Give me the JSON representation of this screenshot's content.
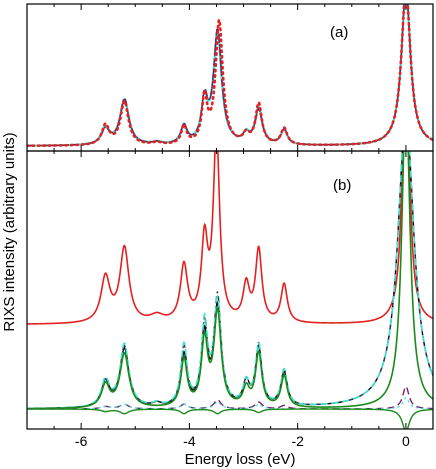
{
  "chart_data": {
    "type": "line",
    "ylabel": "RIXS intensity (arbitrary units)",
    "xlabel": "Energy loss (eV)",
    "xlim": [
      -7.0,
      0.5
    ],
    "x_ticks": [
      -6,
      -4,
      -2,
      0
    ],
    "x_tick_labels": [
      "-6",
      "-4",
      "-2",
      "0"
    ],
    "peaks_eV": [
      -5.55,
      -5.2,
      -4.6,
      -4.1,
      -3.7,
      -3.45,
      -2.95,
      -2.7,
      -2.25,
      0.0
    ],
    "panels": [
      {
        "label": "(a)",
        "ylim": [
          0,
          1.0
        ],
        "series": [
          {
            "style": "solid",
            "color": "#40e0d0",
            "width": 2.2,
            "peaks": [
              {
                "x": -5.55,
                "h": 0.11,
                "w": 0.09
              },
              {
                "x": -5.2,
                "h": 0.3,
                "w": 0.1
              },
              {
                "x": -4.6,
                "h": 0.015,
                "w": 0.1
              },
              {
                "x": -4.1,
                "h": 0.12,
                "w": 0.07
              },
              {
                "x": -3.72,
                "h": 0.27,
                "w": 0.07
              },
              {
                "x": -3.48,
                "h": 0.74,
                "w": 0.09
              },
              {
                "x": -2.95,
                "h": 0.06,
                "w": 0.07
              },
              {
                "x": -2.72,
                "h": 0.24,
                "w": 0.08
              },
              {
                "x": -2.25,
                "h": 0.1,
                "w": 0.07
              },
              {
                "x": 0.0,
                "h": 1.05,
                "w": 0.1
              }
            ]
          },
          {
            "style": "dashdot",
            "color": "#333a52",
            "width": 1.4,
            "peaks": [
              {
                "x": -5.55,
                "h": 0.1,
                "w": 0.09
              },
              {
                "x": -5.2,
                "h": 0.31,
                "w": 0.1
              },
              {
                "x": -4.6,
                "h": 0.015,
                "w": 0.1
              },
              {
                "x": -4.1,
                "h": 0.12,
                "w": 0.07
              },
              {
                "x": -3.72,
                "h": 0.28,
                "w": 0.07
              },
              {
                "x": -3.48,
                "h": 0.76,
                "w": 0.09
              },
              {
                "x": -2.95,
                "h": 0.06,
                "w": 0.07
              },
              {
                "x": -2.72,
                "h": 0.22,
                "w": 0.08
              },
              {
                "x": -2.25,
                "h": 0.1,
                "w": 0.07
              },
              {
                "x": 0.0,
                "h": 1.05,
                "w": 0.1
              }
            ]
          },
          {
            "style": "dashed",
            "color": "#7a1f6e",
            "width": 1.4,
            "peaks": [
              {
                "x": -5.55,
                "h": 0.1,
                "w": 0.09
              },
              {
                "x": -5.2,
                "h": 0.3,
                "w": 0.1
              },
              {
                "x": -4.6,
                "h": 0.015,
                "w": 0.1
              },
              {
                "x": -4.1,
                "h": 0.12,
                "w": 0.07
              },
              {
                "x": -3.72,
                "h": 0.27,
                "w": 0.07
              },
              {
                "x": -3.48,
                "h": 0.75,
                "w": 0.09
              },
              {
                "x": -2.95,
                "h": 0.06,
                "w": 0.07
              },
              {
                "x": -2.72,
                "h": 0.23,
                "w": 0.08
              },
              {
                "x": -2.25,
                "h": 0.1,
                "w": 0.07
              },
              {
                "x": 0.0,
                "h": 1.05,
                "w": 0.1
              }
            ]
          },
          {
            "style": "dotted",
            "color": "#e52020",
            "width": 2.6,
            "peaks": [
              {
                "x": -5.55,
                "h": 0.13,
                "w": 0.08
              },
              {
                "x": -5.2,
                "h": 0.29,
                "w": 0.09
              },
              {
                "x": -4.6,
                "h": 0.015,
                "w": 0.1
              },
              {
                "x": -4.1,
                "h": 0.12,
                "w": 0.06
              },
              {
                "x": -3.72,
                "h": 0.3,
                "w": 0.06
              },
              {
                "x": -3.45,
                "h": 0.82,
                "w": 0.08
              },
              {
                "x": -2.95,
                "h": 0.06,
                "w": 0.07
              },
              {
                "x": -2.72,
                "h": 0.27,
                "w": 0.07
              },
              {
                "x": -2.25,
                "h": 0.11,
                "w": 0.07
              },
              {
                "x": 0.0,
                "h": 1.05,
                "w": 0.1
              }
            ]
          }
        ]
      },
      {
        "label": "(b)",
        "ylim": [
          0,
          1.0
        ],
        "series": [
          {
            "style": "solid",
            "color": "#e52020",
            "width": 1.6,
            "offset": 0.375,
            "peaks": [
              {
                "x": -5.55,
                "h": 0.2,
                "w": 0.1
              },
              {
                "x": -5.2,
                "h": 0.33,
                "w": 0.1
              },
              {
                "x": -4.6,
                "h": 0.03,
                "w": 0.15
              },
              {
                "x": -4.1,
                "h": 0.25,
                "w": 0.08
              },
              {
                "x": -3.72,
                "h": 0.35,
                "w": 0.07
              },
              {
                "x": -3.5,
                "h": 0.83,
                "w": 0.07
              },
              {
                "x": -2.95,
                "h": 0.16,
                "w": 0.07
              },
              {
                "x": -2.72,
                "h": 0.32,
                "w": 0.07
              },
              {
                "x": -2.25,
                "h": 0.17,
                "w": 0.07
              },
              {
                "x": 0.0,
                "h": 1.4,
                "w": 0.07
              }
            ]
          },
          {
            "style": "solid",
            "color": "#000000",
            "width": 1.4,
            "offset": 0.0,
            "peaks": [
              {
                "x": -5.55,
                "h": 0.11,
                "w": 0.09
              },
              {
                "x": -5.2,
                "h": 0.26,
                "w": 0.1
              },
              {
                "x": -4.6,
                "h": 0.015,
                "w": 0.1
              },
              {
                "x": -4.1,
                "h": 0.23,
                "w": 0.07
              },
              {
                "x": -3.72,
                "h": 0.31,
                "w": 0.07
              },
              {
                "x": -3.48,
                "h": 0.44,
                "w": 0.08
              },
              {
                "x": -2.95,
                "h": 0.1,
                "w": 0.07
              },
              {
                "x": -2.72,
                "h": 0.26,
                "w": 0.07
              },
              {
                "x": -2.25,
                "h": 0.15,
                "w": 0.07
              },
              {
                "x": 0.0,
                "h": 1.3,
                "w": 0.18
              }
            ]
          },
          {
            "style": "dashdot",
            "color": "#333a52",
            "width": 1.4,
            "offset": 0.0,
            "peaks": [
              {
                "x": -5.55,
                "h": 0.11,
                "w": 0.09
              },
              {
                "x": -5.2,
                "h": 0.27,
                "w": 0.1
              },
              {
                "x": -4.6,
                "h": 0.015,
                "w": 0.1
              },
              {
                "x": -4.1,
                "h": 0.26,
                "w": 0.07
              },
              {
                "x": -3.72,
                "h": 0.34,
                "w": 0.07
              },
              {
                "x": -3.48,
                "h": 0.48,
                "w": 0.08
              },
              {
                "x": -2.95,
                "h": 0.1,
                "w": 0.07
              },
              {
                "x": -2.72,
                "h": 0.27,
                "w": 0.07
              },
              {
                "x": -2.25,
                "h": 0.16,
                "w": 0.07
              },
              {
                "x": 0.0,
                "h": 1.3,
                "w": 0.18
              }
            ]
          },
          {
            "style": "dashed",
            "color": "#40e0d0",
            "width": 1.6,
            "offset": 0.0,
            "peaks": [
              {
                "x": -5.55,
                "h": 0.12,
                "w": 0.09
              },
              {
                "x": -5.2,
                "h": 0.28,
                "w": 0.1
              },
              {
                "x": -4.6,
                "h": 0.015,
                "w": 0.1
              },
              {
                "x": -4.1,
                "h": 0.27,
                "w": 0.07
              },
              {
                "x": -3.72,
                "h": 0.36,
                "w": 0.07
              },
              {
                "x": -3.48,
                "h": 0.46,
                "w": 0.08
              },
              {
                "x": -2.95,
                "h": 0.1,
                "w": 0.07
              },
              {
                "x": -2.72,
                "h": 0.27,
                "w": 0.07
              },
              {
                "x": -2.25,
                "h": 0.16,
                "w": 0.07
              },
              {
                "x": 0.0,
                "h": 1.3,
                "w": 0.18
              }
            ]
          },
          {
            "style": "solid",
            "color": "#1a8a1a",
            "width": 1.6,
            "offset": 0.0,
            "peaks": [
              {
                "x": -5.55,
                "h": 0.1,
                "w": 0.09
              },
              {
                "x": -5.2,
                "h": 0.24,
                "w": 0.1
              },
              {
                "x": -4.1,
                "h": 0.21,
                "w": 0.07
              },
              {
                "x": -3.72,
                "h": 0.29,
                "w": 0.07
              },
              {
                "x": -3.48,
                "h": 0.42,
                "w": 0.08
              },
              {
                "x": -2.95,
                "h": 0.08,
                "w": 0.07
              },
              {
                "x": -2.72,
                "h": 0.24,
                "w": 0.07
              },
              {
                "x": -2.25,
                "h": 0.14,
                "w": 0.07
              },
              {
                "x": 0.0,
                "h": 1.4,
                "w": 0.09
              }
            ]
          },
          {
            "style": "dashed",
            "color": "#7a1f6e",
            "width": 1.4,
            "offset": 0.0,
            "peaks": [
              {
                "x": -5.55,
                "h": 0.01,
                "w": 0.1
              },
              {
                "x": -5.2,
                "h": 0.02,
                "w": 0.1
              },
              {
                "x": -4.1,
                "h": 0.02,
                "w": 0.08
              },
              {
                "x": -3.48,
                "h": 0.04,
                "w": 0.08
              },
              {
                "x": -2.72,
                "h": 0.03,
                "w": 0.08
              },
              {
                "x": -2.25,
                "h": 0.015,
                "w": 0.08
              },
              {
                "x": 0.0,
                "h": 0.1,
                "w": 0.07
              }
            ]
          },
          {
            "style": "dotted",
            "color": "#40e0d0",
            "width": 1.2,
            "offset": 0.0,
            "peaks": [
              {
                "x": -5.55,
                "h": 0.01,
                "w": 0.1
              },
              {
                "x": -5.2,
                "h": 0.02,
                "w": 0.1
              },
              {
                "x": -4.1,
                "h": 0.02,
                "w": 0.08
              },
              {
                "x": -3.48,
                "h": 0.03,
                "w": 0.08
              },
              {
                "x": -2.72,
                "h": 0.02,
                "w": 0.08
              },
              {
                "x": 0.0,
                "h": 0.05,
                "w": 0.07
              }
            ]
          },
          {
            "style": "solid",
            "color": "#1a8a1a",
            "width": 1.4,
            "offset": 0.0,
            "negative": true,
            "peaks": [
              {
                "x": -5.55,
                "h": -0.01,
                "w": 0.1
              },
              {
                "x": -5.2,
                "h": -0.02,
                "w": 0.1
              },
              {
                "x": -4.1,
                "h": -0.02,
                "w": 0.08
              },
              {
                "x": -3.48,
                "h": -0.02,
                "w": 0.08
              },
              {
                "x": -2.72,
                "h": -0.015,
                "w": 0.08
              },
              {
                "x": 0.0,
                "h": -0.1,
                "w": 0.08
              }
            ]
          }
        ]
      }
    ]
  }
}
